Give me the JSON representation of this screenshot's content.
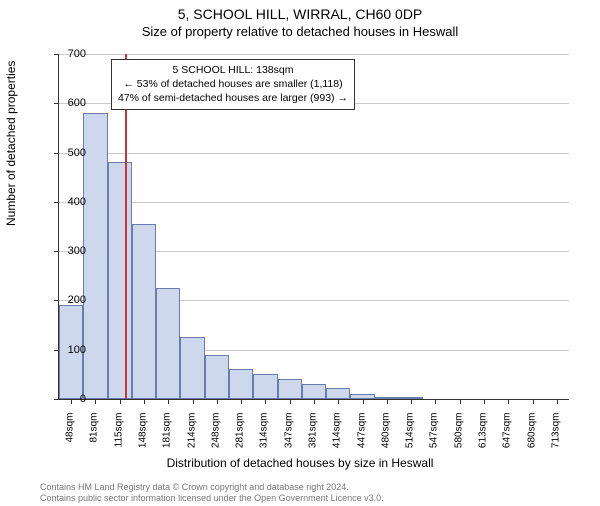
{
  "title_main": "5, SCHOOL HILL, WIRRAL, CH60 0DP",
  "title_sub": "Size of property relative to detached houses in Heswall",
  "chart": {
    "type": "histogram",
    "ymax": 700,
    "ytick_step": 100,
    "yticks": [
      0,
      100,
      200,
      300,
      400,
      500,
      600,
      700
    ],
    "ylabel": "Number of detached properties",
    "xlabel": "Distribution of detached houses by size in Heswall",
    "categories": [
      "48sqm",
      "81sqm",
      "115sqm",
      "148sqm",
      "181sqm",
      "214sqm",
      "248sqm",
      "281sqm",
      "314sqm",
      "347sqm",
      "381sqm",
      "414sqm",
      "447sqm",
      "480sqm",
      "514sqm",
      "547sqm",
      "580sqm",
      "613sqm",
      "647sqm",
      "680sqm",
      "713sqm"
    ],
    "values": [
      190,
      580,
      480,
      355,
      225,
      125,
      90,
      60,
      50,
      40,
      30,
      22,
      10,
      5,
      1,
      0,
      0,
      0,
      0,
      0,
      0
    ],
    "bar_fill": "#ced8ec",
    "bar_border": "#6a7da8",
    "grid_color": "#cccccc",
    "background_color": "#ffffff",
    "ref_line_index": 2.72,
    "ref_line_color": "#cc3333",
    "annotation": {
      "line0": "5 SCHOOL HILL: 138sqm",
      "line1": "← 53% of detached houses are smaller (1,118)",
      "line2": "47% of semi-detached houses are larger (993) →"
    }
  },
  "footer": {
    "line0": "Contains HM Land Registry data © Crown copyright and database right 2024.",
    "line1": "Contains public sector information licensed under the Open Government Licence v3.0."
  }
}
